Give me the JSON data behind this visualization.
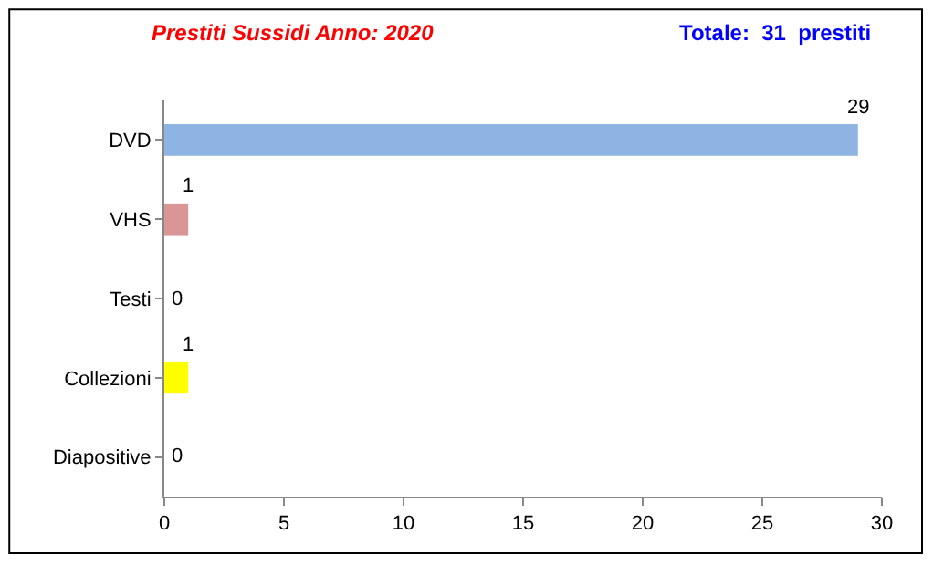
{
  "chart_data": {
    "type": "bar",
    "orientation": "horizontal",
    "title": "Prestiti Sussidi Anno: 2020",
    "subtitle": "Totale:  31  prestiti",
    "categories": [
      "DVD",
      "VHS",
      "Testi",
      "Collezioni",
      "Diapositive"
    ],
    "values": [
      29,
      1,
      0,
      1,
      0
    ],
    "colors": [
      "#8eb4e3",
      "#d99694",
      "#b3a2c7",
      "#ffff00",
      "#93cddd"
    ],
    "xlim": [
      0,
      30
    ],
    "xticks": [
      0,
      5,
      10,
      15,
      20,
      25,
      30
    ],
    "legend": false,
    "data_labels": true
  }
}
